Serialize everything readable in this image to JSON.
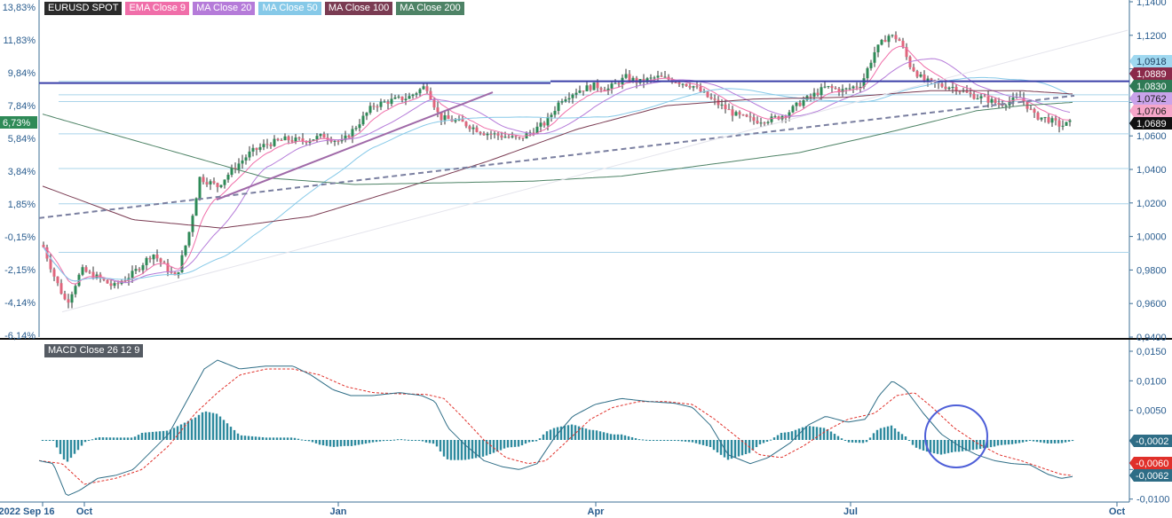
{
  "legend": [
    {
      "label": "EURUSD SPOT",
      "color": "#2b2b2b"
    },
    {
      "label": "EMA Close 9",
      "color": "#f06ea9"
    },
    {
      "label": "MA Close 20",
      "color": "#b57bd9"
    },
    {
      "label": "MA Close 50",
      "color": "#86c9e8"
    },
    {
      "label": "MA Close 100",
      "color": "#7a3b52"
    },
    {
      "label": "MA Close 200",
      "color": "#4e8366"
    }
  ],
  "macd_label": "MACD Close 26 12 9",
  "current_pct_label": "6,73%",
  "chart_data": [
    {
      "type": "candlestick",
      "panel": "price",
      "yaxis_right_ticks": [
        "1,1400",
        "1,1200",
        "1,1000",
        "1,0800",
        "1,0600",
        "1,0400",
        "1,0200",
        "1,0000",
        "0,9800",
        "0,9600",
        "0,9400"
      ],
      "yaxis_left_ticks": [
        "13,83%",
        "11,83%",
        "9,84%",
        "7,84%",
        "5,84%",
        "3,84%",
        "1,85%",
        "-0,15%",
        "-2,15%",
        "-4,14%",
        "-6,14%"
      ],
      "ylim": [
        0.94,
        1.14
      ],
      "x_ticks": [
        "2022 Sep 16",
        "Oct",
        "Jan",
        "Apr",
        "Jul",
        "Oct"
      ],
      "price_tags": [
        {
          "value": "1,0918",
          "color": "#9fd8f0",
          "text_color": "#1a3b5c"
        },
        {
          "value": "1,0889",
          "color": "#8b2a4a",
          "text_color": "#ffffff"
        },
        {
          "value": "1,0830",
          "color": "#2f7a55",
          "text_color": "#ffffff"
        },
        {
          "value": "1,0762",
          "color": "#c9a3ea",
          "text_color": "#1a1a1a"
        },
        {
          "value": "1,0706",
          "color": "#f6a6c9",
          "text_color": "#1a1a1a"
        },
        {
          "value": "1,0689",
          "color": "#111111",
          "text_color": "#ffffff"
        }
      ],
      "horizontal_levels": [
        1.0925,
        1.0845,
        1.0805,
        1.0612,
        1.0405,
        1.0195,
        0.9905
      ],
      "resistance_level": 1.0915,
      "colors": {
        "up": "#2e8a57",
        "down": "#e0657c",
        "grid": "#a9d4ea",
        "resistance": "#3a3fa8",
        "trend_dashed": "#7a7fa0",
        "trend_purple": "#a06aa8"
      }
    },
    {
      "type": "line",
      "panel": "macd",
      "yaxis_right_ticks": [
        "0,0150",
        "0,0100",
        "0,0050",
        "0,0000",
        "-0,0050",
        "-0,0100"
      ],
      "ylim": [
        -0.0105,
        0.0165
      ],
      "value_tags": [
        {
          "value": "-0,0002",
          "color": "#2e6d86",
          "text_color": "#ffffff"
        },
        {
          "value": "-0,0060",
          "color": "#e0302a",
          "text_color": "#ffffff"
        },
        {
          "value": "-0,0062",
          "color": "#2e6d86",
          "text_color": "#ffffff"
        }
      ],
      "colors": {
        "macd": "#2e6d86",
        "signal": "#e0302a",
        "histogram": "#2e8a9e",
        "highlight_circle": "#4e5fd8"
      }
    }
  ]
}
